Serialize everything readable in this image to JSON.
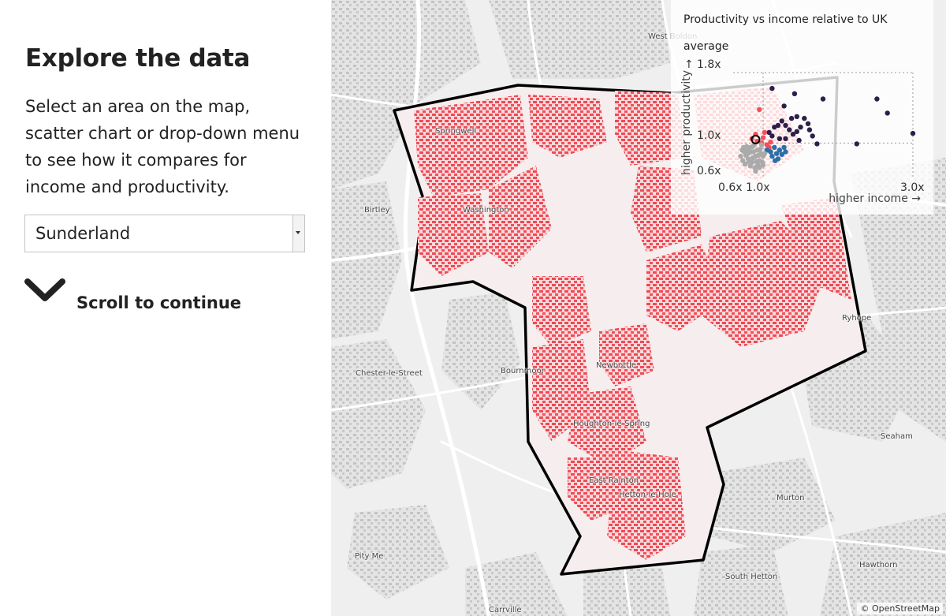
{
  "sidebar": {
    "title": "Explore the data",
    "intro": "Select an area on the map, scatter chart or drop-down menu to see how it compares for income and productivity.",
    "select": {
      "value": "Sunderland",
      "options": [
        "Sunderland"
      ]
    },
    "scroll_label": "Scroll to continue",
    "scroll_icon": "chevron-down-icon"
  },
  "map": {
    "places": [
      {
        "name": "Springwell"
      },
      {
        "name": "Washington"
      },
      {
        "name": "Birtley"
      },
      {
        "name": "Chester-le-Street"
      },
      {
        "name": "Bournmoor"
      },
      {
        "name": "Newbottle"
      },
      {
        "name": "Houghton-le-Spring"
      },
      {
        "name": "East Rainton"
      },
      {
        "name": "Hetton-le-Hole"
      },
      {
        "name": "Ryhope"
      },
      {
        "name": "Seaham"
      },
      {
        "name": "Murton"
      },
      {
        "name": "Hawthorn"
      },
      {
        "name": "South Hetton"
      },
      {
        "name": "Pity Me"
      },
      {
        "name": "Carrville"
      },
      {
        "name": "West Boldon"
      }
    ],
    "attribution": "© OpenStreetMap",
    "highlight_color": "#f0505a",
    "boundary_color": "#000000"
  },
  "inset": {
    "title": "Productivity vs income relative to UK average",
    "x_ticks": [
      "0.6x",
      "1.0x",
      "3.0x"
    ],
    "y_ticks": [
      "1.8x",
      "1.0x",
      "0.6x"
    ],
    "x_label": "higher income →",
    "y_label": "higher productivity",
    "y_arrow": "↑"
  },
  "chart_data": {
    "type": "scatter",
    "title": "Productivity vs income relative to UK average",
    "xlabel": "higher income →",
    "ylabel": "higher productivity",
    "xlim": [
      0.6,
      3.0
    ],
    "ylim": [
      0.6,
      1.8
    ],
    "x_ticks": [
      "0.6x",
      "1.0x",
      "3.0x"
    ],
    "y_ticks": [
      "0.6x",
      "1.0x",
      "1.8x"
    ],
    "grid": true,
    "highlight": {
      "label": "Sunderland",
      "x": 0.9,
      "y": 1.04
    },
    "series": [
      {
        "color": "#2d1e4a",
        "points": [
          [
            1.12,
            1.62
          ],
          [
            1.28,
            1.42
          ],
          [
            1.42,
            1.56
          ],
          [
            1.8,
            1.5
          ],
          [
            2.52,
            1.5
          ],
          [
            2.66,
            1.34
          ],
          [
            3.0,
            1.11
          ],
          [
            2.25,
            0.99
          ],
          [
            1.08,
            1.12
          ],
          [
            1.15,
            1.18
          ],
          [
            1.2,
            1.2
          ],
          [
            1.25,
            1.25
          ],
          [
            1.3,
            1.2
          ],
          [
            1.35,
            1.15
          ],
          [
            1.4,
            1.1
          ],
          [
            1.45,
            1.13
          ],
          [
            1.5,
            1.18
          ],
          [
            1.55,
            1.28
          ],
          [
            1.6,
            1.22
          ],
          [
            1.38,
            1.28
          ],
          [
            1.48,
            1.03
          ],
          [
            1.62,
            1.15
          ],
          [
            1.66,
            1.08
          ],
          [
            1.22,
            1.05
          ],
          [
            1.12,
            1.08
          ],
          [
            1.72,
            0.99
          ],
          [
            1.3,
            1.05
          ],
          [
            1.45,
            1.3
          ]
        ]
      },
      {
        "color": "#f0505a",
        "points": [
          [
            0.95,
            1.38
          ],
          [
            0.85,
            1.05
          ],
          [
            0.92,
            1.02
          ],
          [
            1.0,
            1.06
          ],
          [
            1.05,
            0.98
          ],
          [
            1.1,
            1.01
          ],
          [
            1.02,
            1.12
          ],
          [
            0.9,
            1.1
          ],
          [
            0.98,
            1.0
          ],
          [
            1.08,
            0.95
          ]
        ]
      },
      {
        "color": "#2a6fa8",
        "points": [
          [
            1.05,
            0.92
          ],
          [
            1.1,
            0.9
          ],
          [
            1.12,
            0.85
          ],
          [
            1.15,
            0.95
          ],
          [
            1.18,
            0.88
          ],
          [
            1.2,
            0.82
          ],
          [
            1.22,
            0.92
          ],
          [
            1.25,
            0.87
          ],
          [
            1.16,
            0.8
          ],
          [
            1.28,
            0.95
          ],
          [
            1.3,
            0.9
          ]
        ]
      },
      {
        "color": "#aaaaaa",
        "points": [
          [
            0.7,
            0.85
          ],
          [
            0.75,
            0.9
          ],
          [
            0.8,
            0.82
          ],
          [
            0.82,
            0.95
          ],
          [
            0.85,
            0.78
          ],
          [
            0.87,
            0.9
          ],
          [
            0.9,
            0.85
          ],
          [
            0.92,
            0.92
          ],
          [
            0.95,
            0.8
          ],
          [
            0.97,
            0.88
          ],
          [
            0.73,
            0.8
          ],
          [
            0.78,
            0.96
          ],
          [
            0.88,
            0.98
          ],
          [
            0.93,
            0.75
          ],
          [
            1.0,
            0.85
          ],
          [
            0.72,
            0.92
          ],
          [
            0.8,
            0.88
          ],
          [
            0.86,
            0.83
          ],
          [
            0.83,
            0.74
          ],
          [
            0.77,
            0.86
          ],
          [
            0.91,
            0.79
          ],
          [
            0.96,
            0.93
          ],
          [
            0.99,
            0.78
          ],
          [
            0.76,
            0.76
          ],
          [
            0.84,
            0.9
          ],
          [
            0.89,
            0.72
          ],
          [
            0.94,
            0.86
          ],
          [
            0.81,
            0.79
          ],
          [
            0.74,
            0.95
          ],
          [
            0.98,
            0.98
          ],
          [
            1.02,
            0.88
          ],
          [
            0.86,
            0.96
          ],
          [
            0.79,
            0.92
          ],
          [
            0.9,
            0.68
          ],
          [
            0.95,
            0.72
          ],
          [
            1.0,
            0.75
          ]
        ]
      }
    ]
  }
}
